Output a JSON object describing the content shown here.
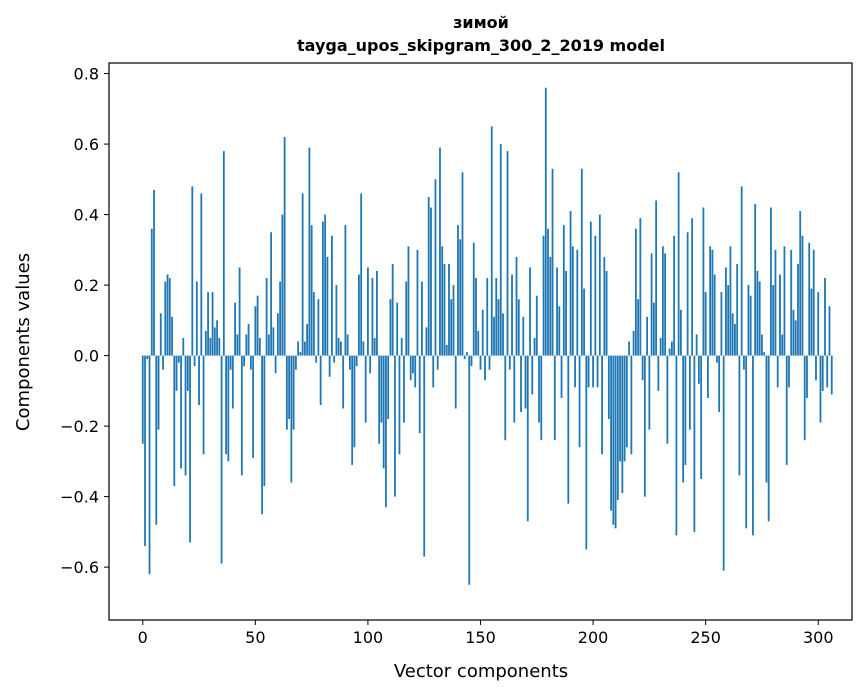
{
  "chart_data": {
    "type": "bar",
    "title": "зимой",
    "subtitle": "tayga_upos_skipgram_300_2_2019 model",
    "xlabel": "Vector components",
    "ylabel": "Components values",
    "xlim": [
      -15,
      315
    ],
    "ylim": [
      -0.75,
      0.83
    ],
    "xticks": [
      0,
      50,
      100,
      150,
      200,
      250,
      300
    ],
    "yticks": [
      -0.6,
      -0.4,
      -0.2,
      0.0,
      0.2,
      0.4,
      0.6,
      0.8
    ],
    "xtick_labels": [
      "0",
      "50",
      "100",
      "150",
      "200",
      "250",
      "300"
    ],
    "ytick_labels": [
      "−0.6",
      "−0.4",
      "−0.2",
      "0.0",
      "0.2",
      "0.4",
      "0.6",
      "0.8"
    ],
    "grid": false,
    "bar_color": "#1f77b4",
    "values": [
      -0.25,
      -0.54,
      -0.01,
      -0.62,
      0.36,
      0.47,
      -0.48,
      -0.21,
      0.12,
      -0.04,
      0.21,
      0.23,
      0.22,
      0.11,
      -0.37,
      -0.1,
      -0.02,
      -0.32,
      0.05,
      -0.34,
      -0.1,
      -0.53,
      0.48,
      -0.03,
      0.21,
      -0.14,
      0.46,
      -0.28,
      0.07,
      0.18,
      0.05,
      0.18,
      0.08,
      0.1,
      0.05,
      -0.59,
      0.58,
      -0.28,
      -0.3,
      -0.04,
      -0.15,
      0.15,
      0.06,
      0.25,
      -0.34,
      -0.03,
      0.06,
      0.09,
      -0.04,
      -0.29,
      0.14,
      0.17,
      0.05,
      -0.45,
      -0.37,
      0.22,
      0.06,
      0.35,
      0.08,
      -0.05,
      0.12,
      0.21,
      0.4,
      0.62,
      -0.21,
      -0.18,
      -0.36,
      -0.21,
      -0.04,
      0.04,
      0.01,
      0.46,
      0.04,
      0.09,
      0.59,
      0.37,
      0.18,
      -0.02,
      0.16,
      -0.14,
      0.38,
      0.4,
      0.28,
      -0.06,
      0.34,
      -0.02,
      0.2,
      0.05,
      0.04,
      -0.15,
      0.37,
      0.06,
      -0.04,
      -0.31,
      -0.26,
      -0.03,
      0.23,
      0.46,
      0.04,
      -0.19,
      0.25,
      -0.05,
      0.22,
      0.05,
      0.24,
      -0.25,
      -0.19,
      -0.32,
      -0.43,
      -0.18,
      0.16,
      0.26,
      -0.4,
      0.15,
      -0.28,
      0.05,
      -0.19,
      0.21,
      0.31,
      -0.07,
      -0.05,
      -0.09,
      0.3,
      -0.22,
      0.21,
      -0.57,
      0.08,
      0.45,
      0.42,
      -0.09,
      0.5,
      -0.04,
      0.59,
      0.31,
      0.26,
      0.03,
      0.26,
      0.16,
      0.2,
      -0.15,
      0.37,
      0.33,
      0.52,
      -0.01,
      0.01,
      -0.65,
      -0.03,
      0.32,
      0.22,
      0.07,
      -0.04,
      0.13,
      -0.07,
      0.22,
      -0.04,
      0.65,
      0.11,
      0.22,
      0.16,
      0.6,
      0.12,
      -0.24,
      0.58,
      -0.04,
      0.23,
      -0.19,
      0.28,
      0.16,
      -0.16,
      0.11,
      -0.15,
      -0.47,
      0.25,
      -0.11,
      0.05,
      0.17,
      -0.19,
      -0.24,
      0.34,
      0.76,
      0.36,
      0.28,
      0.53,
      -0.24,
      0.25,
      0.14,
      -0.12,
      0.37,
      0.24,
      -0.42,
      0.41,
      0.31,
      -0.09,
      0.3,
      -0.26,
      0.53,
      0.19,
      -0.55,
      -0.09,
      0.38,
      -0.09,
      0.34,
      -0.09,
      0.4,
      -0.28,
      0.28,
      0.24,
      -0.18,
      -0.44,
      -0.48,
      -0.49,
      -0.41,
      -0.3,
      -0.39,
      -0.3,
      -0.26,
      0.04,
      -0.28,
      0.07,
      0.36,
      0.16,
      0.39,
      -0.07,
      -0.4,
      0.11,
      -0.21,
      0.29,
      0.15,
      0.44,
      -0.1,
      0.05,
      0.31,
      0.29,
      -0.25,
      0.02,
      0.04,
      0.34,
      -0.51,
      0.52,
      0.13,
      -0.36,
      -0.31,
      0.35,
      -0.21,
      0.39,
      -0.5,
      0.06,
      -0.08,
      -0.35,
      0.42,
      0.18,
      -0.12,
      0.31,
      0.3,
      0.23,
      -0.02,
      -0.16,
      0.18,
      -0.61,
      0.25,
      0.2,
      0.31,
      0.12,
      0.09,
      0.26,
      -0.34,
      0.48,
      -0.04,
      -0.49,
      0.2,
      0.17,
      -0.51,
      0.43,
      0.24,
      0.21,
      0.06,
      0.01,
      -0.36,
      -0.47,
      0.42,
      0.2,
      0.3,
      -0.09,
      0.23,
      0.06,
      0.31,
      -0.31,
      -0.09,
      0.3,
      0.13,
      0.1,
      0.26,
      0.41,
      0.34,
      -0.24,
      -0.12,
      0.32,
      0.19,
      0.3,
      -0.07,
      0.18,
      -0.19,
      -0.1,
      0.22,
      -0.09,
      0.14,
      -0.11
    ]
  }
}
